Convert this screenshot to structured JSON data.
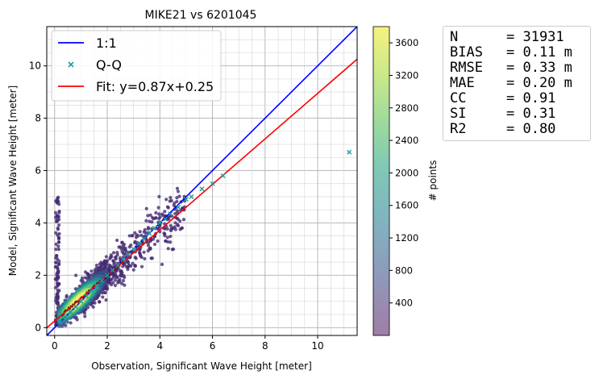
{
  "chart_data": {
    "type": "scatter",
    "title": "MIKE21 vs 6201045",
    "xlabel": "Observation, Significant Wave Height [meter]",
    "ylabel": "Model, Significant Wave Height [meter]",
    "xlim": [
      -0.3,
      11.5
    ],
    "ylim": [
      -0.3,
      11.5
    ],
    "x_ticks": [
      "0",
      "2",
      "4",
      "6",
      "8",
      "10"
    ],
    "y_ticks": [
      "0",
      "2",
      "4",
      "6",
      "8",
      "10"
    ],
    "grid": true,
    "legend": {
      "placement": "top-left",
      "entries": [
        {
          "label": "1:1",
          "color": "#0000ff",
          "kind": "line"
        },
        {
          "label": "Q-Q",
          "color": "#1f9e9e",
          "kind": "marker"
        },
        {
          "label": "Fit: y=0.87x+0.25",
          "color": "#ff0000",
          "kind": "line"
        }
      ]
    },
    "lines": {
      "one_to_one": {
        "slope": 1.0,
        "intercept": 0.0,
        "color": "#0000ff"
      },
      "fit": {
        "slope": 0.87,
        "intercept": 0.25,
        "color": "#ff0000"
      }
    },
    "qq": {
      "x": [
        0.2,
        0.4,
        0.6,
        0.8,
        1.0,
        1.2,
        1.4,
        1.6,
        1.8,
        2.0,
        2.2,
        2.4,
        2.6,
        2.8,
        3.0,
        3.2,
        3.4,
        3.6,
        3.8,
        4.0,
        4.2,
        4.4,
        4.7,
        5.0,
        5.2,
        5.6,
        6.0,
        6.4,
        11.2
      ],
      "y": [
        0.2,
        0.4,
        0.6,
        0.8,
        1.0,
        1.2,
        1.4,
        1.6,
        1.8,
        2.0,
        2.2,
        2.4,
        2.6,
        2.8,
        3.0,
        3.2,
        3.4,
        3.6,
        3.8,
        4.0,
        4.15,
        4.35,
        4.6,
        4.9,
        5.0,
        5.3,
        5.5,
        5.8,
        6.7
      ]
    },
    "colorbar": {
      "label": "# points",
      "ticks": [
        "400",
        "800",
        "1200",
        "1600",
        "2000",
        "2400",
        "2800",
        "3200",
        "3600"
      ],
      "tick_values": [
        400,
        800,
        1200,
        1600,
        2000,
        2400,
        2800,
        3200,
        3600
      ],
      "range": [
        0,
        3800
      ]
    },
    "stats": [
      {
        "key": "N",
        "value": "= 31931"
      },
      {
        "key": "BIAS",
        "value": "= 0.11 m"
      },
      {
        "key": "RMSE",
        "value": "= 0.33 m"
      },
      {
        "key": "MAE",
        "value": "= 0.20 m"
      },
      {
        "key": "CC",
        "value": "= 0.91"
      },
      {
        "key": "SI",
        "value": "= 0.31"
      },
      {
        "key": "R2",
        "value": "= 0.80"
      }
    ],
    "colors": {
      "low": "#440154",
      "mid": "#21918c",
      "high": "#fde725"
    }
  }
}
